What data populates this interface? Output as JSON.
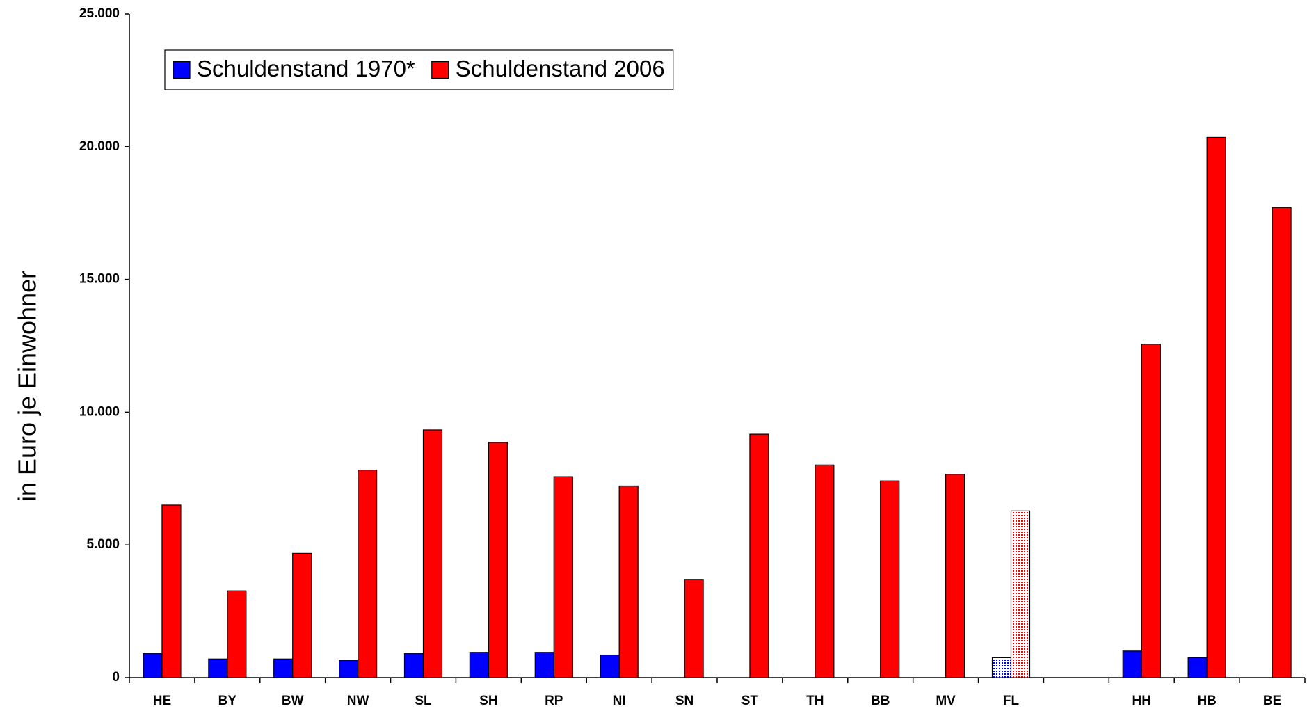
{
  "chart_data": {
    "type": "bar",
    "y_label": "in Euro je Einwohner",
    "categories": [
      "HE",
      "BY",
      "BW",
      "NW",
      "SL",
      "SH",
      "RP",
      "NI",
      "SN",
      "ST",
      "TH",
      "BB",
      "MV",
      "FL",
      null,
      "HH",
      "HB",
      "BE"
    ],
    "series": [
      {
        "name": "Schuldenstand 1970*",
        "color": "#0000ff",
        "values": [
          900,
          700,
          700,
          650,
          900,
          950,
          950,
          850,
          null,
          null,
          null,
          null,
          null,
          750,
          null,
          1000,
          750,
          null
        ]
      },
      {
        "name": "Schuldenstand 2006",
        "color": "#ff0000",
        "values": [
          6500,
          3270,
          4680,
          7820,
          9330,
          8860,
          7570,
          7220,
          3700,
          9170,
          8010,
          7410,
          7660,
          6280,
          null,
          12560,
          20350,
          17710
        ]
      }
    ],
    "pattern_indices": [
      13
    ],
    "ylim": [
      0,
      25000
    ],
    "yticks": [
      0,
      {
        "value": 5000,
        "label": "5.000"
      },
      {
        "value": 10000,
        "label": "10.000"
      },
      {
        "value": 15000,
        "label": "15.000"
      },
      {
        "value": 20000,
        "label": "20.000"
      },
      {
        "value": 25000,
        "label": "25.000"
      }
    ],
    "grid": false,
    "legend": "top-left"
  }
}
